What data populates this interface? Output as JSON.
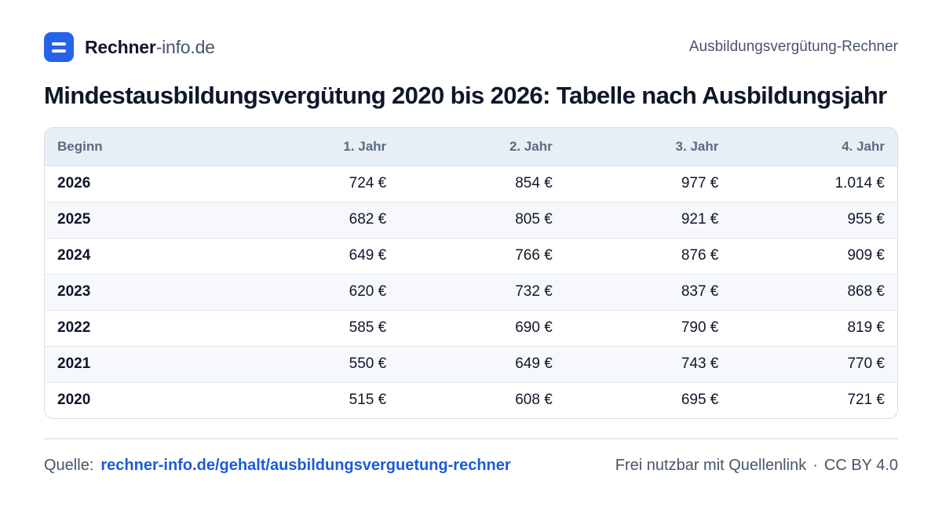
{
  "header": {
    "brand_bold": "Rechner",
    "brand_light": "-info.de",
    "calculator_name": "Ausbildungsvergütung-Rechner",
    "logo_icon": "equals-icon",
    "accent_color": "#2563eb"
  },
  "title": "Mindestausbildungsvergütung 2020 bis 2026: Tabelle nach Ausbildungsjahr",
  "table": {
    "columns": [
      "Beginn",
      "1. Jahr",
      "2. Jahr",
      "3. Jahr",
      "4. Jahr"
    ],
    "rows": [
      [
        "2026",
        "724 €",
        "854 €",
        "977 €",
        "1.014 €"
      ],
      [
        "2025",
        "682 €",
        "805 €",
        "921 €",
        "955 €"
      ],
      [
        "2024",
        "649 €",
        "766 €",
        "876 €",
        "909 €"
      ],
      [
        "2023",
        "620 €",
        "732 €",
        "837 €",
        "868 €"
      ],
      [
        "2022",
        "585 €",
        "690 €",
        "790 €",
        "819 €"
      ],
      [
        "2021",
        "550 €",
        "649 €",
        "743 €",
        "770 €"
      ],
      [
        "2020",
        "515 €",
        "608 €",
        "695 €",
        "721 €"
      ]
    ]
  },
  "footer": {
    "source_label": "Quelle:",
    "source_link": "rechner-info.de/gehalt/ausbildungsverguetung-rechner",
    "license_text": "Frei nutzbar mit Quellenlink",
    "separator": "·",
    "license_name": "CC BY 4.0",
    "link_color": "#1d5bd8"
  }
}
